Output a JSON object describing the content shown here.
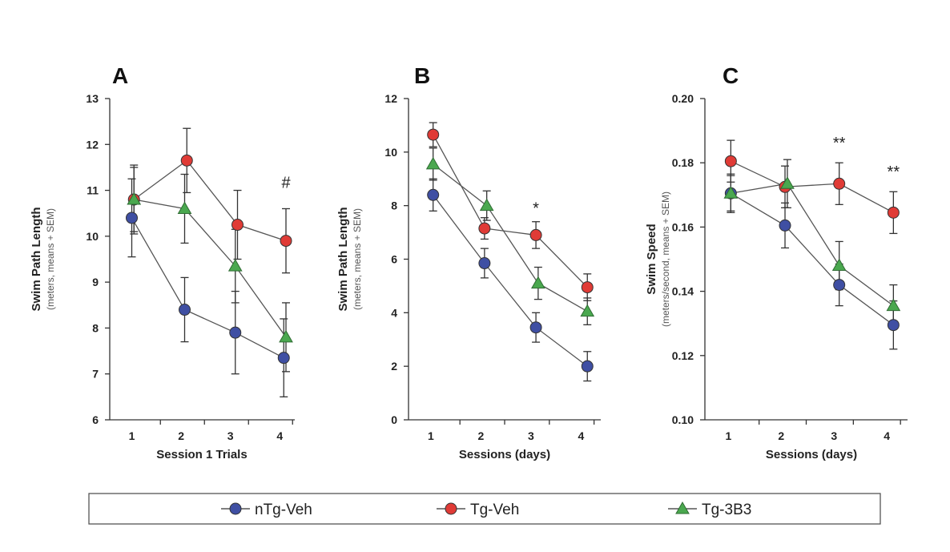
{
  "chart_data": [
    {
      "type": "line",
      "panel": "A",
      "xlabel": "Session 1 Trials",
      "ylabel": "Swim Path Length",
      "ylabel_sub": "(meters, means + SEM)",
      "ylim": [
        6,
        13
      ],
      "yticks": [
        6,
        7,
        8,
        9,
        10,
        11,
        12,
        13
      ],
      "ytick_labels": [
        "6",
        "7",
        "8",
        "9",
        "10",
        "11",
        "12",
        "13"
      ],
      "xticks": [
        1,
        2,
        3,
        4
      ],
      "xlim": [
        0.5,
        4.7
      ],
      "series": [
        {
          "name": "nTg-Veh",
          "x": [
            1,
            2.2,
            3.35,
            4.45
          ],
          "values": [
            10.4,
            8.4,
            7.9,
            7.35
          ],
          "err": [
            0.85,
            0.7,
            0.9,
            0.85
          ]
        },
        {
          "name": "Tg-Veh",
          "x": [
            1.05,
            2.25,
            3.4,
            4.5
          ],
          "values": [
            10.8,
            11.65,
            10.25,
            9.9
          ],
          "err": [
            0.7,
            0.7,
            0.75,
            0.7
          ]
        },
        {
          "name": "Tg-3B3",
          "x": [
            1.05,
            2.2,
            3.35,
            4.5
          ],
          "values": [
            10.8,
            10.6,
            9.35,
            7.8
          ],
          "err": [
            0.75,
            0.75,
            0.8,
            0.75
          ]
        }
      ],
      "annotations": [
        {
          "text": "#",
          "x": 4.5,
          "y": 11.05
        }
      ]
    },
    {
      "type": "line",
      "panel": "B",
      "xlabel": "Sessions (days)",
      "ylabel": "Swim Path Length",
      "ylabel_sub": "(meters, means + SEM)",
      "ylim": [
        0,
        12
      ],
      "yticks": [
        0,
        2,
        4,
        6,
        8,
        10,
        12
      ],
      "ytick_labels": [
        "0",
        "2",
        "4",
        "6",
        "8",
        "10",
        "12"
      ],
      "xticks": [
        1,
        2,
        3,
        4
      ],
      "xlim": [
        0.5,
        4.8
      ],
      "series": [
        {
          "name": "nTg-Veh",
          "x": [
            1.05,
            2.2,
            3.35,
            4.5
          ],
          "values": [
            8.4,
            5.85,
            3.45,
            2.0
          ],
          "err": [
            0.6,
            0.55,
            0.55,
            0.55
          ]
        },
        {
          "name": "Tg-Veh",
          "x": [
            1.05,
            2.2,
            3.35,
            4.5
          ],
          "values": [
            10.65,
            7.15,
            6.9,
            4.95
          ],
          "err": [
            0.45,
            0.4,
            0.5,
            0.5
          ]
        },
        {
          "name": "Tg-3B3",
          "x": [
            1.05,
            2.25,
            3.4,
            4.5
          ],
          "values": [
            9.55,
            8.0,
            5.1,
            4.05
          ],
          "err": [
            0.6,
            0.55,
            0.6,
            0.5
          ]
        }
      ],
      "annotations": [
        {
          "text": "*",
          "x": 3.35,
          "y": 7.7
        }
      ]
    },
    {
      "type": "line",
      "panel": "C",
      "xlabel": "Sessions (days)",
      "ylabel": "Swim Speed",
      "ylabel_sub": "(meters/second, means + SEM)",
      "ylim": [
        0.1,
        0.2
      ],
      "yticks": [
        0.1,
        0.12,
        0.14,
        0.16,
        0.18,
        0.2
      ],
      "ytick_labels": [
        "0.10",
        "0.12",
        "0.14",
        "0.16",
        "0.18",
        "0.20"
      ],
      "xticks": [
        1,
        2,
        3,
        4
      ],
      "xlim": [
        0.5,
        4.8
      ],
      "series": [
        {
          "name": "nTg-Veh",
          "x": [
            1.05,
            2.2,
            3.35,
            4.5
          ],
          "values": [
            0.1705,
            0.1605,
            0.142,
            0.1295
          ],
          "err": [
            0.0055,
            0.007,
            0.0065,
            0.0075
          ]
        },
        {
          "name": "Tg-Veh",
          "x": [
            1.05,
            2.2,
            3.35,
            4.5
          ],
          "values": [
            0.1805,
            0.1725,
            0.1735,
            0.1645
          ],
          "err": [
            0.0065,
            0.0065,
            0.0065,
            0.0065
          ]
        },
        {
          "name": "Tg-3B3",
          "x": [
            1.05,
            2.25,
            3.35,
            4.5
          ],
          "values": [
            0.1705,
            0.1735,
            0.148,
            0.1355
          ],
          "err": [
            0.006,
            0.0075,
            0.0075,
            0.0065
          ]
        }
      ],
      "annotations": [
        {
          "text": "**",
          "x": 3.35,
          "y": 0.1845
        },
        {
          "text": "**",
          "x": 4.5,
          "y": 0.1755
        }
      ]
    }
  ],
  "legend": [
    {
      "name": "nTg-Veh",
      "marker": "circle",
      "color": "#3f4fa3"
    },
    {
      "name": "Tg-Veh",
      "marker": "circle",
      "color": "#e03b36"
    },
    {
      "name": "Tg-3B3",
      "marker": "triangle",
      "color": "#4aa84f"
    }
  ],
  "colors": {
    "nTg-Veh": "#3f4fa3",
    "Tg-Veh": "#e03b36",
    "Tg-3B3": "#4aa84f",
    "line": "#555555",
    "axis": "#333333"
  }
}
